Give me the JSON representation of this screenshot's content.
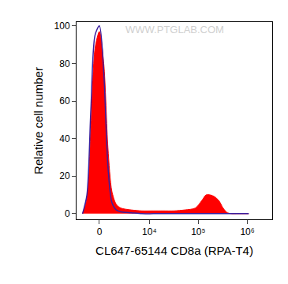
{
  "chart_data": {
    "type": "histogram",
    "x_label": "CL647-65144 CD8a (RPA-T4)",
    "y_label": "Relative cell number",
    "annotations": [
      "WWW.PTGLAB.COM"
    ],
    "x": [
      -1700,
      -1200,
      -800,
      -400,
      0,
      400,
      800,
      1200,
      1700,
      2300,
      4100,
      7000,
      12000,
      19000,
      32000,
      53000,
      87000,
      118000,
      144000,
      176000,
      215000,
      262000,
      320000,
      391000,
      478000,
      645000,
      1064000
    ],
    "series": [
      {
        "type": "area",
        "color": "#ff0000",
        "values": [
          0,
          8,
          45,
          88,
          97,
          80,
          35,
          12,
          5,
          3,
          2,
          1.5,
          1.5,
          1.5,
          1.5,
          2,
          3,
          7,
          10,
          10,
          9,
          7,
          3,
          0.5,
          0,
          0,
          0
        ]
      },
      {
        "type": "line",
        "color": "#3b1f9e",
        "values": [
          0,
          10,
          55,
          95,
          100,
          75,
          25,
          6,
          2,
          1,
          0.5,
          0,
          0,
          0,
          0,
          0,
          0,
          0,
          0,
          0,
          0,
          0,
          0,
          0,
          0,
          0,
          0
        ]
      }
    ],
    "xlim": [
      -2500,
      3200000
    ],
    "xticks": [
      0,
      {
        "value": 10000,
        "label": "10⁴"
      },
      {
        "value": 100000,
        "label": "10⁵"
      },
      {
        "value": 1000000,
        "label": "10⁶"
      }
    ],
    "ylim": [
      -3,
      102
    ],
    "yticks": [
      0,
      20,
      40,
      60,
      80,
      100
    ],
    "grid": false
  }
}
